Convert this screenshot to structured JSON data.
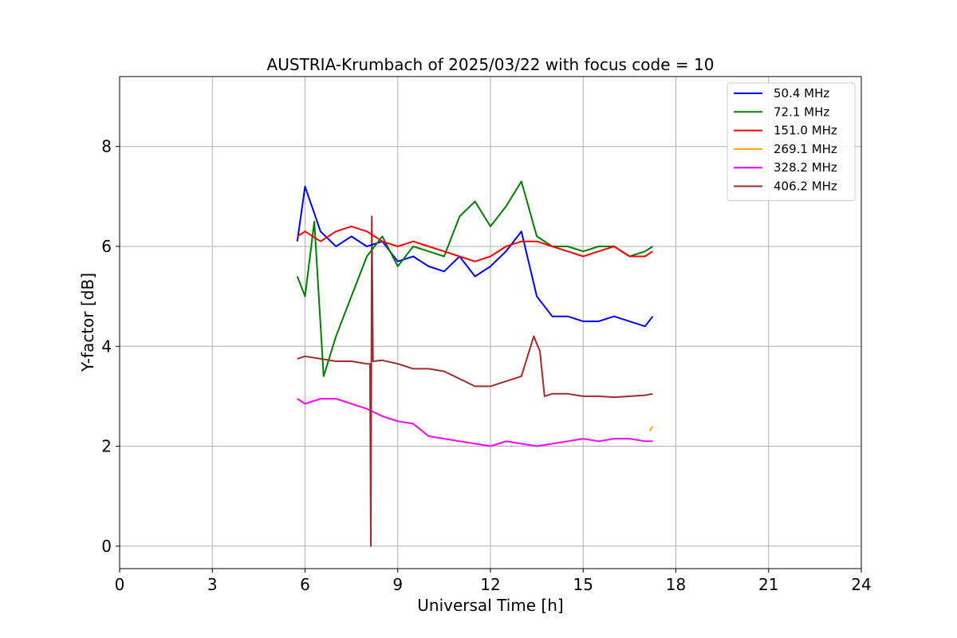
{
  "chart_data": {
    "type": "line",
    "title": "AUSTRIA-Krumbach of 2025/03/22 with focus code = 10",
    "xlabel": "Universal Time [h]",
    "ylabel": "Y-factor [dB]",
    "xlim": [
      0,
      24
    ],
    "ylim": [
      -0.45,
      9.4
    ],
    "xticks": [
      "0",
      "3",
      "6",
      "9",
      "12",
      "15",
      "18",
      "21",
      "24"
    ],
    "yticks": [
      "0",
      "2",
      "4",
      "6",
      "8"
    ],
    "grid": true,
    "legend_position": "top-right",
    "series": [
      {
        "name": " 50.4 MHz",
        "color": "#0000ff",
        "x": [
          5.75,
          6.0,
          6.5,
          7.0,
          7.5,
          8.0,
          8.5,
          9.0,
          9.5,
          10.0,
          10.5,
          11.0,
          11.5,
          12.0,
          12.5,
          13.0,
          13.5,
          14.0,
          14.5,
          15.0,
          15.5,
          16.0,
          16.5,
          17.0,
          17.25
        ],
        "y": [
          6.1,
          7.2,
          6.3,
          6.0,
          6.2,
          6.0,
          6.1,
          5.7,
          5.8,
          5.6,
          5.5,
          5.8,
          5.4,
          5.6,
          5.9,
          6.3,
          5.0,
          4.6,
          4.6,
          4.5,
          4.5,
          4.6,
          4.5,
          4.4,
          4.6
        ]
      },
      {
        "name": " 72.1 MHz",
        "color": "#008000",
        "x": [
          5.75,
          6.0,
          6.3,
          6.6,
          7.0,
          7.5,
          8.0,
          8.5,
          9.0,
          9.5,
          10.0,
          10.5,
          11.0,
          11.5,
          12.0,
          12.5,
          13.0,
          13.5,
          14.0,
          14.5,
          15.0,
          15.5,
          16.0,
          16.5,
          17.0,
          17.25
        ],
        "y": [
          5.4,
          5.0,
          6.5,
          3.4,
          4.2,
          5.0,
          5.8,
          6.2,
          5.6,
          6.0,
          5.9,
          5.8,
          6.6,
          6.9,
          6.4,
          6.8,
          7.3,
          6.2,
          6.0,
          6.0,
          5.9,
          6.0,
          6.0,
          5.8,
          5.9,
          6.0
        ]
      },
      {
        "name": " 151.0 MHz",
        "color": "#ff0000",
        "x": [
          5.75,
          6.0,
          6.5,
          7.0,
          7.5,
          8.0,
          8.5,
          9.0,
          9.5,
          10.0,
          10.5,
          11.0,
          11.5,
          12.0,
          12.5,
          13.0,
          13.5,
          14.0,
          14.5,
          15.0,
          15.5,
          16.0,
          16.5,
          17.0,
          17.25
        ],
        "y": [
          6.2,
          6.3,
          6.1,
          6.3,
          6.4,
          6.3,
          6.1,
          6.0,
          6.1,
          6.0,
          5.9,
          5.8,
          5.7,
          5.8,
          6.0,
          6.1,
          6.1,
          6.0,
          5.9,
          5.8,
          5.9,
          6.0,
          5.8,
          5.8,
          5.9
        ]
      },
      {
        "name": " 269.1 MHz",
        "color": "#ffa500",
        "x": [
          17.15,
          17.25
        ],
        "y": [
          2.3,
          2.4
        ]
      },
      {
        "name": " 328.2 MHz",
        "color": "#ff00ff",
        "x": [
          5.75,
          6.0,
          6.5,
          7.0,
          7.5,
          8.0,
          8.5,
          9.0,
          9.5,
          10.0,
          10.5,
          11.0,
          11.5,
          12.0,
          12.5,
          13.0,
          13.5,
          14.0,
          14.5,
          15.0,
          15.5,
          16.0,
          16.5,
          17.0,
          17.25
        ],
        "y": [
          2.95,
          2.85,
          2.95,
          2.95,
          2.85,
          2.75,
          2.6,
          2.5,
          2.45,
          2.2,
          2.15,
          2.1,
          2.05,
          2.0,
          2.1,
          2.05,
          2.0,
          2.05,
          2.1,
          2.15,
          2.1,
          2.15,
          2.15,
          2.1,
          2.1
        ]
      },
      {
        "name": " 406.2 MHz",
        "color": "#a52a2a",
        "x": [
          5.75,
          6.0,
          6.5,
          7.0,
          7.5,
          8.0,
          8.1,
          8.13,
          8.16,
          8.2,
          8.5,
          9.0,
          9.5,
          10.0,
          10.5,
          11.0,
          11.5,
          12.0,
          12.5,
          13.0,
          13.4,
          13.6,
          13.75,
          14.0,
          14.5,
          15.0,
          15.5,
          16.0,
          16.5,
          17.0,
          17.25
        ],
        "y": [
          3.75,
          3.8,
          3.75,
          3.7,
          3.7,
          3.65,
          3.65,
          0.0,
          6.6,
          3.7,
          3.72,
          3.65,
          3.55,
          3.55,
          3.5,
          3.35,
          3.2,
          3.2,
          3.3,
          3.4,
          4.2,
          3.9,
          3.0,
          3.05,
          3.05,
          3.0,
          3.0,
          2.98,
          3.0,
          3.02,
          3.05
        ]
      }
    ]
  }
}
